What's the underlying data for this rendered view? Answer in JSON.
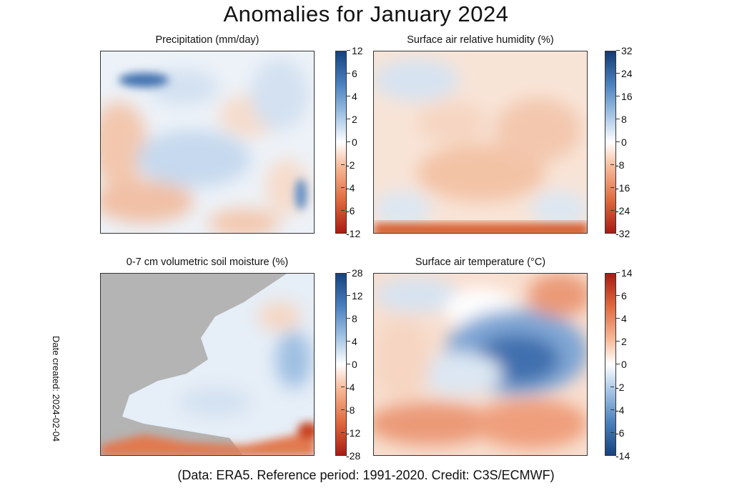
{
  "title": "Anomalies for January 2024",
  "date_created": "Date created: 2024-02-04",
  "footer": "(Data: ERA5. Reference period: 1991-2020. Credit: C3S/ECMWF)",
  "panels": [
    {
      "title": "Precipitation (mm/day)",
      "colormap": "red-white-blue",
      "ticks": [
        "12",
        "6",
        "4",
        "2",
        "0",
        "-2",
        "-4",
        "-6",
        "-12"
      ],
      "colors": {
        "high": "#1a4a8f",
        "mid": "#ffffff",
        "low": "#c0281a"
      },
      "pattern": "mostly light blue/white with pale orange patches over the Atlantic and southern Europe"
    },
    {
      "title": "Surface air relative humidity (%)",
      "colormap": "red-white-blue",
      "ticks": [
        "32",
        "24",
        "16",
        "8",
        "0",
        "-8",
        "-16",
        "-24",
        "-32"
      ],
      "colors": {
        "high": "#1a3f7a",
        "mid": "#ffffff",
        "low": "#b52414"
      },
      "pattern": "pale orange over central and eastern Europe, light blue in the northwest"
    },
    {
      "title": "0-7 cm volumetric soil moisture (%)",
      "colormap": "red-white-blue",
      "ticks": [
        "28",
        "12",
        "8",
        "4",
        "0",
        "-4",
        "-8",
        "-12",
        "-28"
      ],
      "colors": {
        "high": "#1a4a8f",
        "mid": "#ffffff",
        "low": "#c0281a",
        "missing": "#b4b4b4"
      },
      "pattern": "grey over sea (no data), light blue over most land, orange along North Africa"
    },
    {
      "title": "Surface air temperature (°C)",
      "colormap": "blue-white-red",
      "ticks": [
        "14",
        "6",
        "4",
        "2",
        "0",
        "-2",
        "-4",
        "-6",
        "-14"
      ],
      "colors": {
        "high": "#c0281a",
        "mid": "#ffffff",
        "low": "#1a4a8f"
      },
      "pattern": "strong blue cold anomaly over Scandinavia and western Russia, warm orange/red over the south and east"
    }
  ]
}
